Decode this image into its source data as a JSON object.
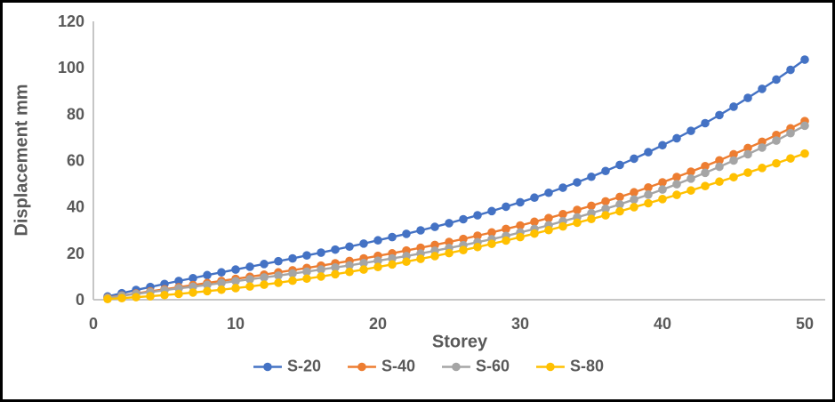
{
  "frame": {
    "border_color": "#000000",
    "background": "#FFFFFF"
  },
  "chart_data": {
    "type": "line",
    "xlabel": "Storey",
    "ylabel": "Displacement mm",
    "xlim": [
      0,
      50
    ],
    "ylim": [
      0,
      120
    ],
    "xticks": [
      0,
      10,
      20,
      30,
      40,
      50
    ],
    "yticks": [
      0,
      20,
      40,
      60,
      80,
      100,
      120
    ],
    "grid": false,
    "legend_position": "bottom",
    "axis_color": "#BFBFBF",
    "text_color": "#595959",
    "x": [
      1,
      2,
      3,
      4,
      5,
      6,
      7,
      8,
      9,
      10,
      11,
      12,
      13,
      14,
      15,
      16,
      17,
      18,
      19,
      20,
      21,
      22,
      23,
      24,
      25,
      26,
      27,
      28,
      29,
      30,
      31,
      32,
      33,
      34,
      35,
      36,
      37,
      38,
      39,
      40,
      41,
      42,
      43,
      44,
      45,
      46,
      47,
      48,
      49,
      50
    ],
    "series": [
      {
        "name": "S-20",
        "color": "#4472C4",
        "values": [
          1.4,
          2.8,
          4.2,
          5.5,
          6.8,
          8.1,
          9.3,
          10.6,
          11.8,
          13.0,
          14.2,
          15.4,
          16.6,
          17.8,
          19.1,
          20.3,
          21.6,
          22.9,
          24.2,
          25.6,
          27.0,
          28.4,
          29.9,
          31.4,
          33.0,
          34.7,
          36.4,
          38.2,
          40.1,
          42.0,
          44.0,
          46.1,
          48.3,
          50.6,
          53.0,
          55.5,
          58.1,
          60.8,
          63.6,
          66.6,
          69.6,
          72.8,
          76.1,
          79.6,
          83.2,
          87.0,
          90.9,
          94.9,
          99.1,
          103.5
        ]
      },
      {
        "name": "S-40",
        "color": "#ED7D31",
        "values": [
          0.9,
          1.8,
          2.7,
          3.6,
          4.5,
          5.4,
          6.3,
          7.2,
          8.1,
          9.0,
          9.9,
          10.8,
          11.8,
          12.7,
          13.7,
          14.7,
          15.7,
          16.7,
          17.8,
          18.9,
          20.0,
          21.2,
          22.4,
          23.6,
          24.9,
          26.2,
          27.6,
          29.0,
          30.5,
          32.0,
          33.6,
          35.2,
          36.9,
          38.7,
          40.5,
          42.4,
          44.3,
          46.3,
          48.4,
          50.6,
          52.9,
          55.2,
          57.6,
          60.1,
          62.7,
          65.4,
          68.1,
          71.0,
          73.9,
          77.0
        ]
      },
      {
        "name": "S-60",
        "color": "#A5A5A5",
        "values": [
          0.8,
          1.7,
          2.5,
          3.3,
          4.1,
          4.9,
          5.6,
          6.4,
          7.2,
          8.0,
          8.8,
          9.6,
          10.4,
          11.3,
          12.1,
          13.0,
          13.9,
          14.8,
          15.8,
          16.8,
          17.8,
          18.8,
          19.9,
          21.1,
          22.3,
          23.5,
          24.8,
          26.1,
          27.5,
          29.0,
          30.5,
          32.1,
          33.8,
          35.5,
          37.3,
          39.2,
          41.1,
          43.2,
          45.3,
          47.5,
          49.8,
          52.2,
          54.7,
          57.3,
          60.0,
          62.7,
          65.6,
          68.6,
          71.8,
          75.0
        ]
      },
      {
        "name": "S-80",
        "color": "#FFC000",
        "values": [
          0.3,
          0.7,
          1.1,
          1.5,
          2.0,
          2.5,
          3.1,
          3.7,
          4.3,
          5.0,
          5.7,
          6.5,
          7.3,
          8.2,
          9.1,
          10.0,
          11.0,
          12.0,
          13.0,
          14.1,
          15.2,
          16.4,
          17.6,
          18.8,
          20.1,
          21.4,
          22.7,
          24.1,
          25.5,
          27.0,
          28.5,
          30.0,
          31.6,
          33.2,
          34.8,
          36.4,
          38.1,
          39.9,
          41.6,
          43.4,
          45.2,
          47.1,
          49.0,
          50.9,
          52.8,
          54.8,
          56.8,
          58.8,
          60.9,
          63.0
        ]
      }
    ]
  }
}
